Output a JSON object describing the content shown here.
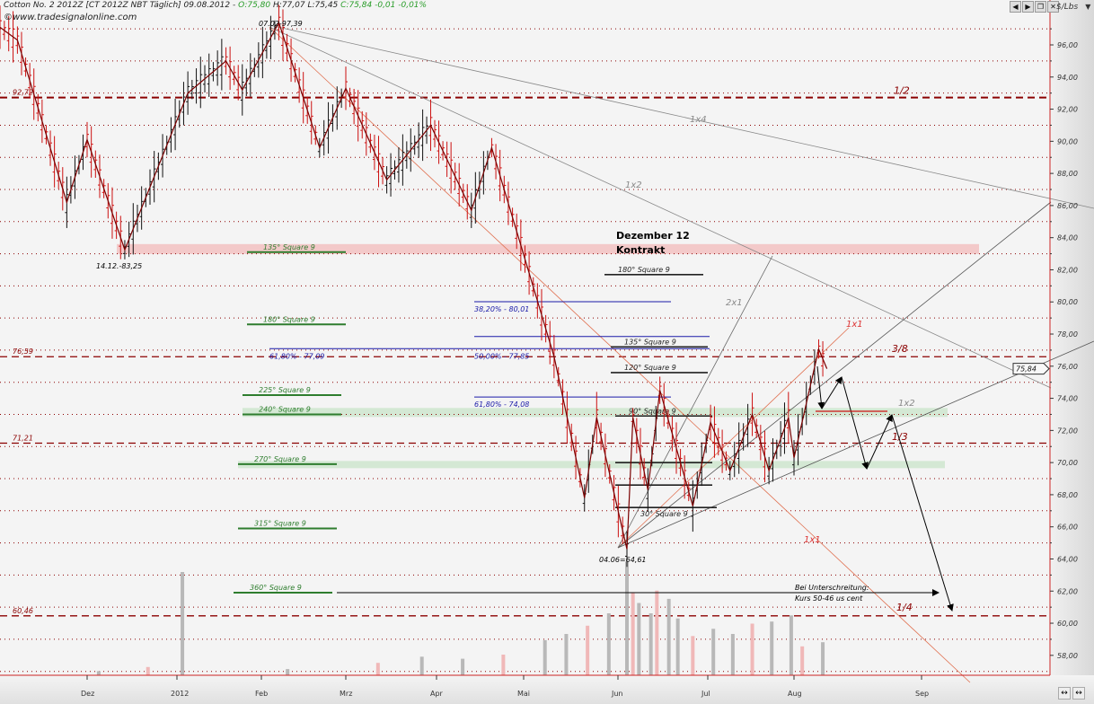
{
  "header": {
    "instrument": "Cotton No. 2 2012Z [CT 2012Z NBT Täglich] 09.08.2012 -",
    "open": "O:75,80",
    "high": "H:77,07",
    "low": "L:75,45",
    "close_change": "C:75,84 -0,01 -0,01%",
    "watermark": "©www.tradesignalonline.com",
    "unit": "$/Lbs",
    "nav_buttons": [
      "back-arrow",
      "forward-arrow",
      "restore",
      "close"
    ],
    "scroll_buttons": [
      "↔",
      "↔"
    ]
  },
  "chart_data": {
    "type": "ohlc-bar",
    "title": "Cotton No. 2 2012Z [CT 2012Z NBT Täglich]",
    "ylabel": "$/Lbs",
    "ylim": [
      56.5,
      98.5
    ],
    "yticks": [
      "58,00",
      "60,00",
      "62,00",
      "64,00",
      "66,00",
      "68,00",
      "70,00",
      "72,00",
      "74,00",
      "76,00",
      "78,00",
      "80,00",
      "82,00",
      "84,00",
      "86,00",
      "88,00",
      "90,00",
      "92,00",
      "94,00",
      "96,00"
    ],
    "xticks": [
      {
        "label": "Dez",
        "date": "2011-12-01"
      },
      {
        "label": "2012",
        "date": "2012-01-01"
      },
      {
        "label": "Feb",
        "date": "2012-02-01"
      },
      {
        "label": "Mrz",
        "date": "2012-03-01"
      },
      {
        "label": "Apr",
        "date": "2012-04-01"
      },
      {
        "label": "Mai",
        "date": "2012-05-01"
      },
      {
        "label": "Jun",
        "date": "2012-06-01"
      },
      {
        "label": "Jul",
        "date": "2012-07-01"
      },
      {
        "label": "Aug",
        "date": "2012-08-01"
      },
      {
        "label": "Sep",
        "date": "2012-09-01"
      }
    ],
    "grid": true,
    "last_price": "75,84",
    "price_swings": [
      {
        "date": "2011-11-01",
        "value": 97.1
      },
      {
        "date": "2011-11-07",
        "value": 96.3
      },
      {
        "date": "2011-11-24",
        "value": 86.2
      },
      {
        "date": "2011-12-01",
        "value": 90.1
      },
      {
        "date": "2011-12-14",
        "value": 83.25
      },
      {
        "date": "2012-01-05",
        "value": 93.0
      },
      {
        "date": "2012-01-19",
        "value": 95.0
      },
      {
        "date": "2012-01-25",
        "value": 93.2
      },
      {
        "date": "2012-02-07",
        "value": 97.39
      },
      {
        "date": "2012-02-21",
        "value": 89.6
      },
      {
        "date": "2012-03-01",
        "value": 93.3
      },
      {
        "date": "2012-03-15",
        "value": 87.6
      },
      {
        "date": "2012-03-30",
        "value": 91.0
      },
      {
        "date": "2012-04-13",
        "value": 85.7
      },
      {
        "date": "2012-04-20",
        "value": 89.6
      },
      {
        "date": "2012-05-11",
        "value": 76.6
      },
      {
        "date": "2012-05-21",
        "value": 67.8
      },
      {
        "date": "2012-05-25",
        "value": 72.8
      },
      {
        "date": "2012-06-04",
        "value": 64.61
      },
      {
        "date": "2012-06-06",
        "value": 72.8
      },
      {
        "date": "2012-06-11",
        "value": 68.3
      },
      {
        "date": "2012-06-15",
        "value": 74.5
      },
      {
        "date": "2012-06-26",
        "value": 67.3
      },
      {
        "date": "2012-07-02",
        "value": 72.5
      },
      {
        "date": "2012-07-09",
        "value": 69.5
      },
      {
        "date": "2012-07-17",
        "value": 73.0
      },
      {
        "date": "2012-07-23",
        "value": 69.5
      },
      {
        "date": "2012-07-30",
        "value": 72.8
      },
      {
        "date": "2012-08-01",
        "value": 70.3
      },
      {
        "date": "2012-08-07",
        "value": 77.07
      },
      {
        "date": "2012-08-09",
        "value": 75.84
      }
    ],
    "volume": [
      {
        "date": "2011-12-05",
        "value": 4
      },
      {
        "date": "2011-12-22",
        "value": 8
      },
      {
        "date": "2012-01-03",
        "value": 100
      },
      {
        "date": "2012-02-10",
        "value": 6
      },
      {
        "date": "2012-03-12",
        "value": 12
      },
      {
        "date": "2012-03-27",
        "value": 18
      },
      {
        "date": "2012-04-10",
        "value": 16
      },
      {
        "date": "2012-04-24",
        "value": 20
      },
      {
        "date": "2012-05-08",
        "value": 34
      },
      {
        "date": "2012-05-15",
        "value": 40
      },
      {
        "date": "2012-05-22",
        "value": 48
      },
      {
        "date": "2012-05-29",
        "value": 60
      },
      {
        "date": "2012-06-04",
        "value": 110
      },
      {
        "date": "2012-06-06",
        "value": 80
      },
      {
        "date": "2012-06-08",
        "value": 70
      },
      {
        "date": "2012-06-12",
        "value": 60
      },
      {
        "date": "2012-06-14",
        "value": 82
      },
      {
        "date": "2012-06-18",
        "value": 74
      },
      {
        "date": "2012-06-21",
        "value": 55
      },
      {
        "date": "2012-06-26",
        "value": 38
      },
      {
        "date": "2012-07-03",
        "value": 45
      },
      {
        "date": "2012-07-10",
        "value": 40
      },
      {
        "date": "2012-07-17",
        "value": 50
      },
      {
        "date": "2012-07-24",
        "value": 52
      },
      {
        "date": "2012-07-31",
        "value": 58
      },
      {
        "date": "2012-08-03",
        "value": 28
      },
      {
        "date": "2012-08-08",
        "value": 32
      }
    ],
    "levels": [
      {
        "value": 92.72,
        "label": "92,72",
        "tag": "1/2"
      },
      {
        "value": 76.59,
        "label": "76,59",
        "tag": "3/8"
      },
      {
        "value": 71.21,
        "label": "71,21",
        "tag": "1/3"
      },
      {
        "value": 60.46,
        "label": "60,46",
        "tag": "1/4"
      }
    ],
    "square9_left": [
      {
        "value": 83.1,
        "label": "135° Square 9"
      },
      {
        "value": 78.6,
        "label": "180° Square 9"
      },
      {
        "value": 74.2,
        "label": "225° Square 9"
      },
      {
        "value": 73.0,
        "label": "240° Square 9"
      },
      {
        "value": 69.9,
        "label": "270° Square 9"
      },
      {
        "value": 65.9,
        "label": "315° Square 9"
      },
      {
        "value": 61.9,
        "label": "360° Square 9"
      }
    ],
    "square9_right": [
      {
        "value": 81.7,
        "label": "180° Square 9"
      },
      {
        "value": 77.2,
        "label": "135° Square 9"
      },
      {
        "value": 75.6,
        "label": "120° Square 9"
      },
      {
        "value": 72.9,
        "label": "90° Square 9"
      },
      {
        "value": 70.0,
        "label": ""
      },
      {
        "value": 68.6,
        "label": ""
      },
      {
        "value": 67.2,
        "label": "30° Square 9"
      }
    ],
    "fibonacci": [
      {
        "value": 80.01,
        "label": "38,20% - 80,01"
      },
      {
        "value": 77.09,
        "label": "61,80% - 77,09"
      },
      {
        "value": 77.85,
        "label": "50,00% - 77,85"
      },
      {
        "value": 74.08,
        "label": "61,80% - 74,08"
      }
    ],
    "gann_labels": [
      "1x4",
      "1x2",
      "2x1",
      "1x1",
      "1x2",
      "1x1"
    ],
    "annotations": {
      "high": "07.02-97,39",
      "low_dec": "14.12.-83,25",
      "low_jun": "04.06=64,61",
      "contract_line1": "Dezember 12",
      "contract_line2": "Kontrakt",
      "note_line1": "Bei Unterschreitung:",
      "note_line2": "Kurs 50-46 us cent"
    },
    "colors": {
      "up": "#111111",
      "down": "#cc1111",
      "level": "#8b0000",
      "fib": "#1a1aa8",
      "square9": "#2e7d2e",
      "band_pink": "#f3c9c9",
      "band_green": "#d4e8d4",
      "volume_up": "#b8b8b8",
      "volume_down": "#f0b8b8"
    }
  }
}
